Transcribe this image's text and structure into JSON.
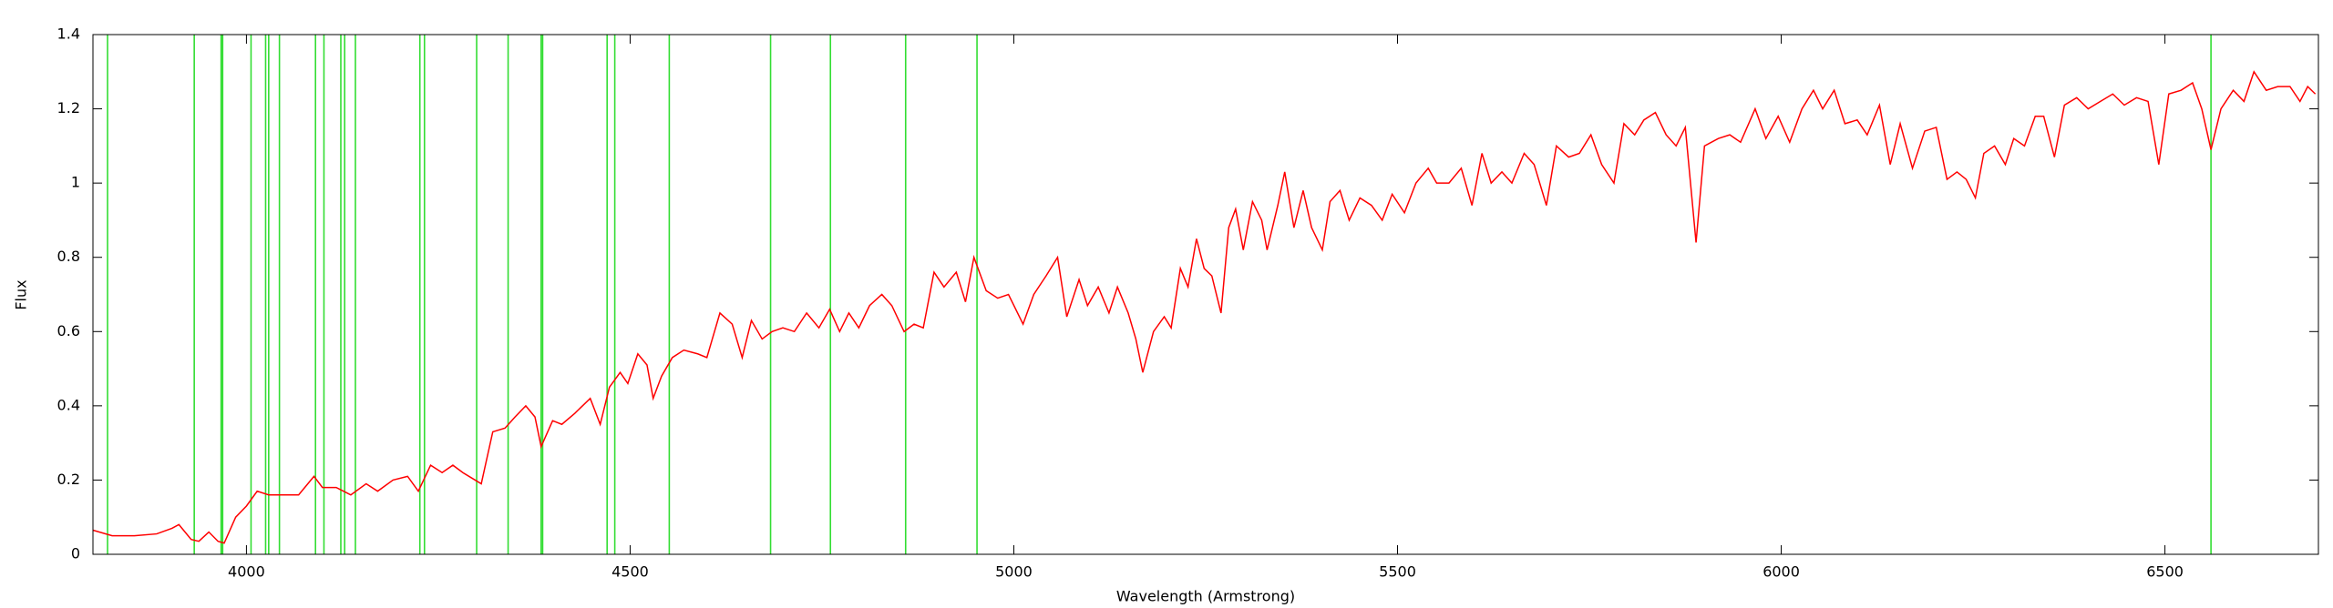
{
  "chart_data": {
    "type": "line",
    "xlabel": "Wavelength (Armstrong)",
    "ylabel": "Flux",
    "xlim": [
      3800,
      6700
    ],
    "ylim": [
      0,
      1.4
    ],
    "xticks": [
      4000,
      4500,
      5000,
      5500,
      6000,
      6500
    ],
    "yticks": [
      0,
      0.2,
      0.4,
      0.6,
      0.8,
      1,
      1.2,
      1.4
    ],
    "color": "#ff0000",
    "line_color": "#33dd33",
    "lines": [
      3819,
      3932,
      3967,
      3969,
      4006,
      4025,
      4029,
      4043,
      4090,
      4101,
      4123,
      4128,
      4142,
      4226,
      4232,
      4300,
      4341,
      4384,
      4386,
      4470,
      4480,
      4551,
      4683,
      4761,
      4859,
      4952,
      6560
    ],
    "x": [
      3800,
      3825,
      3854,
      3883,
      3903,
      3912,
      3928,
      3938,
      3951,
      3963,
      3971,
      3986,
      4000,
      4014,
      4029,
      4049,
      4068,
      4088,
      4099,
      4117,
      4136,
      4156,
      4171,
      4191,
      4210,
      4224,
      4240,
      4255,
      4269,
      4282,
      4298,
      4306,
      4321,
      4337,
      4350,
      4364,
      4376,
      4384,
      4399,
      4411,
      4428,
      4448,
      4461,
      4473,
      4487,
      4497,
      4510,
      4522,
      4530,
      4541,
      4555,
      4570,
      4588,
      4600,
      4617,
      4633,
      4646,
      4658,
      4672,
      4685,
      4699,
      4714,
      4730,
      4746,
      4760,
      4773,
      4785,
      4798,
      4812,
      4828,
      4841,
      4857,
      4870,
      4882,
      4896,
      4909,
      4925,
      4937,
      4948,
      4964,
      4979,
      4993,
      5012,
      5026,
      5042,
      5057,
      5069,
      5085,
      5096,
      5110,
      5124,
      5135,
      5149,
      5159,
      5168,
      5182,
      5196,
      5205,
      5217,
      5227,
      5238,
      5248,
      5258,
      5270,
      5280,
      5289,
      5299,
      5311,
      5323,
      5330,
      5344,
      5353,
      5365,
      5377,
      5388,
      5402,
      5412,
      5425,
      5437,
      5451,
      5466,
      5480,
      5493,
      5509,
      5524,
      5540,
      5551,
      5567,
      5583,
      5597,
      5610,
      5622,
      5636,
      5649,
      5665,
      5678,
      5694,
      5707,
      5723,
      5737,
      5752,
      5766,
      5782,
      5795,
      5809,
      5821,
      5836,
      5850,
      5863,
      5875,
      5889,
      5900,
      5918,
      5933,
      5947,
      5966,
      5980,
      5996,
      6011,
      6027,
      6042,
      6054,
      6069,
      6083,
      6099,
      6112,
      6128,
      6142,
      6155,
      6171,
      6187,
      6202,
      6216,
      6229,
      6241,
      6253,
      6264,
      6278,
      6292,
      6303,
      6317,
      6331,
      6342,
      6356,
      6369,
      6385,
      6400,
      6416,
      6432,
      6447,
      6463,
      6478,
      6492,
      6505,
      6521,
      6536,
      6548,
      6560,
      6573,
      6589,
      6603,
      6616,
      6632,
      6647,
      6663,
      6676,
      6686,
      6696
    ],
    "values": [
      0.065,
      0.05,
      0.05,
      0.055,
      0.07,
      0.08,
      0.04,
      0.035,
      0.06,
      0.035,
      0.03,
      0.1,
      0.13,
      0.17,
      0.16,
      0.16,
      0.16,
      0.21,
      0.18,
      0.18,
      0.16,
      0.19,
      0.17,
      0.2,
      0.21,
      0.17,
      0.24,
      0.22,
      0.24,
      0.22,
      0.2,
      0.19,
      0.33,
      0.34,
      0.37,
      0.4,
      0.37,
      0.29,
      0.36,
      0.35,
      0.38,
      0.42,
      0.35,
      0.45,
      0.49,
      0.46,
      0.54,
      0.51,
      0.42,
      0.48,
      0.53,
      0.55,
      0.54,
      0.53,
      0.65,
      0.62,
      0.53,
      0.63,
      0.58,
      0.6,
      0.61,
      0.6,
      0.65,
      0.61,
      0.66,
      0.6,
      0.65,
      0.61,
      0.67,
      0.7,
      0.67,
      0.6,
      0.62,
      0.61,
      0.76,
      0.72,
      0.76,
      0.68,
      0.8,
      0.71,
      0.69,
      0.7,
      0.62,
      0.7,
      0.75,
      0.8,
      0.64,
      0.74,
      0.67,
      0.72,
      0.65,
      0.72,
      0.65,
      0.58,
      0.49,
      0.6,
      0.64,
      0.61,
      0.77,
      0.72,
      0.85,
      0.77,
      0.75,
      0.65,
      0.88,
      0.93,
      0.82,
      0.95,
      0.9,
      0.82,
      0.94,
      1.03,
      0.88,
      0.98,
      0.88,
      0.82,
      0.95,
      0.98,
      0.9,
      0.96,
      0.94,
      0.9,
      0.97,
      0.92,
      1.0,
      1.04,
      1.0,
      1.0,
      1.04,
      0.94,
      1.08,
      1.0,
      1.03,
      1.0,
      1.08,
      1.05,
      0.94,
      1.1,
      1.07,
      1.08,
      1.13,
      1.05,
      1.0,
      1.16,
      1.13,
      1.17,
      1.19,
      1.13,
      1.1,
      1.15,
      0.84,
      1.1,
      1.12,
      1.13,
      1.11,
      1.2,
      1.12,
      1.18,
      1.11,
      1.2,
      1.25,
      1.2,
      1.25,
      1.16,
      1.17,
      1.13,
      1.21,
      1.05,
      1.16,
      1.04,
      1.14,
      1.15,
      1.01,
      1.03,
      1.01,
      0.96,
      1.08,
      1.1,
      1.05,
      1.12,
      1.1,
      1.18,
      1.18,
      1.07,
      1.21,
      1.23,
      1.2,
      1.22,
      1.24,
      1.21,
      1.23,
      1.22,
      1.05,
      1.24,
      1.25,
      1.27,
      1.2,
      1.09,
      1.2,
      1.25,
      1.22,
      1.3,
      1.25,
      1.26,
      1.26,
      1.22,
      1.26,
      1.24
    ]
  }
}
